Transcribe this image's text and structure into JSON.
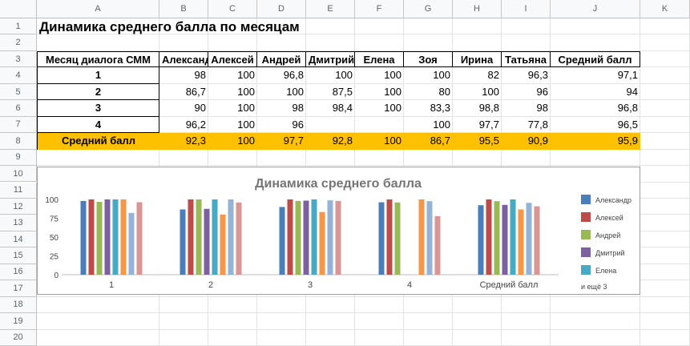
{
  "columns": [
    "A",
    "B",
    "C",
    "D",
    "E",
    "F",
    "G",
    "H",
    "I",
    "J",
    "K"
  ],
  "rows": [
    "1",
    "2",
    "3",
    "4",
    "5",
    "6",
    "7",
    "8",
    "9",
    "10",
    "11",
    "12",
    "13",
    "14",
    "15",
    "16",
    "17",
    "18",
    "19",
    "20"
  ],
  "sheet": {
    "title": "Динамика среднего балла по месяцам",
    "header": [
      "Месяц диалога СММ",
      "Александр",
      "Алексей",
      "Андрей",
      "Дмитрий",
      "Елена",
      "Зоя",
      "Ирина",
      "Татьяна",
      "Средний балл"
    ],
    "body": [
      [
        "1",
        "98",
        "100",
        "96,8",
        "100",
        "100",
        "100",
        "82",
        "96,3",
        "97,1"
      ],
      [
        "2",
        "86,7",
        "100",
        "100",
        "87,5",
        "100",
        "80",
        "100",
        "96",
        "94"
      ],
      [
        "3",
        "90",
        "100",
        "98",
        "98,4",
        "100",
        "83,3",
        "98,8",
        "98",
        "96,8"
      ],
      [
        "4",
        "96,2",
        "100",
        "96",
        "",
        "",
        "100",
        "97,7",
        "77,8",
        "96,5"
      ]
    ],
    "avg_row": [
      "Средний балл",
      "92,3",
      "100",
      "97,7",
      "92,8",
      "100",
      "86,7",
      "95,5",
      "90,9",
      "95,9"
    ]
  },
  "chart_data": {
    "type": "bar",
    "title": "Динамика среднего балла",
    "categories": [
      "1",
      "2",
      "3",
      "4",
      "Средний балл"
    ],
    "y_ticks": [
      "0",
      "25",
      "50",
      "75",
      "100"
    ],
    "ylim": [
      0,
      100
    ],
    "legend_position": "right",
    "legend_more": "и ещё 3",
    "colors": [
      "#4a7ebb",
      "#be4b48",
      "#98b954",
      "#7d60a0",
      "#46aac5",
      "#f79646",
      "#95b3d7",
      "#d99694"
    ],
    "series": [
      {
        "name": "Александр",
        "values": [
          98,
          86.7,
          90,
          96.2,
          92.3
        ]
      },
      {
        "name": "Алексей",
        "values": [
          100,
          100,
          100,
          100,
          100
        ]
      },
      {
        "name": "Андрей",
        "values": [
          96.8,
          100,
          98,
          96,
          97.7
        ]
      },
      {
        "name": "Дмитрий",
        "values": [
          100,
          87.5,
          98.4,
          null,
          92.8
        ]
      },
      {
        "name": "Елена",
        "values": [
          100,
          100,
          100,
          null,
          100
        ]
      },
      {
        "name": "Зоя",
        "values": [
          100,
          80,
          83.3,
          100,
          86.7
        ]
      },
      {
        "name": "Ирина",
        "values": [
          82,
          100,
          98.8,
          97.7,
          95.5
        ]
      },
      {
        "name": "Татьяна",
        "values": [
          96.3,
          96,
          98,
          77.8,
          90.9
        ]
      }
    ]
  }
}
